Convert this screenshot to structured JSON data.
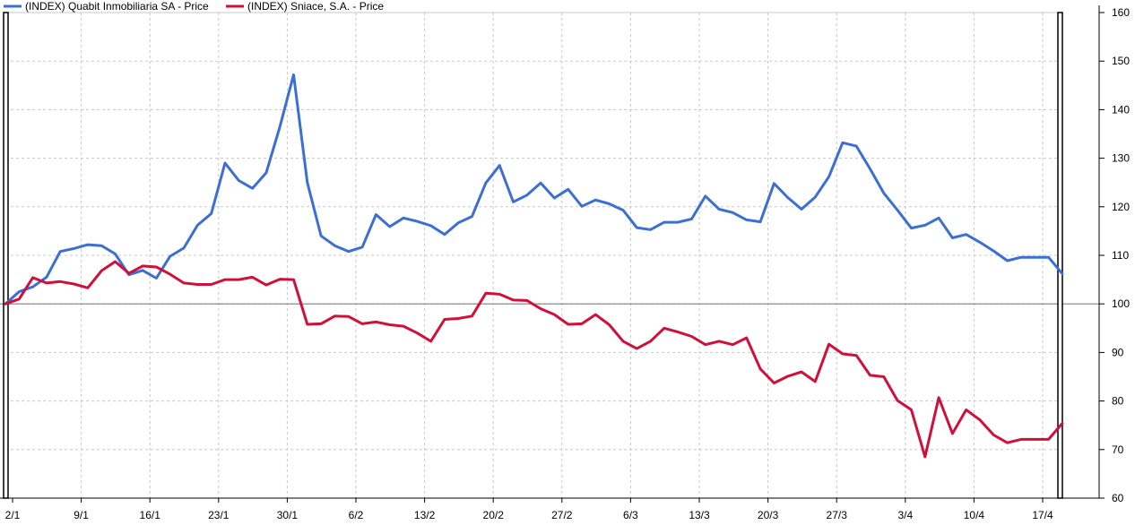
{
  "chart_data": {
    "type": "line",
    "title": "",
    "xlabel": "",
    "ylabel": "",
    "ylim": [
      60,
      160
    ],
    "yticks": [
      60,
      70,
      80,
      90,
      100,
      110,
      120,
      130,
      140,
      150,
      160
    ],
    "xtick_labels": [
      "2/1",
      "9/1",
      "16/1",
      "23/1",
      "30/1",
      "6/2",
      "13/2",
      "20/2",
      "27/2",
      "6/3",
      "13/3",
      "20/3",
      "27/3",
      "3/4",
      "10/4",
      "17/4"
    ],
    "baseline": 100,
    "grid": true,
    "legend_position": "top-left",
    "colors": {
      "series1": "#3b6fd3",
      "series2": "#d0103a",
      "grid": "#c8c8c8",
      "baseline": "#808080",
      "axis": "#000000"
    },
    "series": [
      {
        "name": "(INDEX) Quabit Inmobiliaria SA - Price",
        "values": [
          100,
          102.5,
          103.5,
          105.5,
          110.8,
          111.4,
          112.2,
          112.0,
          110.3,
          106.0,
          106.9,
          105.3,
          109.8,
          111.5,
          116.2,
          118.6,
          129.0,
          125.4,
          123.8,
          127.0,
          136.5,
          147.2,
          125.0,
          114.0,
          112.0,
          110.8,
          111.7,
          118.4,
          115.9,
          117.7,
          117.0,
          116.1,
          114.3,
          116.7,
          118.0,
          124.9,
          128.5,
          121.0,
          122.4,
          124.9,
          121.8,
          123.6,
          120.1,
          121.4,
          120.6,
          119.3,
          115.7,
          115.3,
          116.8,
          116.8,
          117.5,
          122.2,
          119.5,
          118.8,
          117.3,
          116.9,
          124.8,
          121.9,
          119.5,
          122.0,
          126.2,
          133.2,
          132.5,
          127.8,
          122.8,
          119.3,
          115.6,
          116.2,
          117.7,
          113.6,
          114.3,
          112.7,
          110.9,
          108.9,
          109.6,
          109.6,
          109.6,
          106.2
        ]
      },
      {
        "name": "(INDEX) Sniace, S.A. - Price",
        "values": [
          100,
          101.0,
          105.4,
          104.3,
          104.6,
          104.1,
          103.3,
          106.8,
          108.7,
          106.3,
          107.8,
          107.6,
          106.1,
          104.3,
          104.0,
          104.0,
          105.0,
          105.0,
          105.5,
          103.9,
          105.1,
          105.0,
          95.8,
          95.9,
          97.5,
          97.4,
          95.9,
          96.3,
          95.7,
          95.4,
          94.0,
          92.3,
          96.8,
          97.0,
          97.5,
          102.2,
          102.0,
          100.8,
          100.7,
          99.0,
          97.8,
          95.8,
          95.9,
          97.8,
          95.7,
          92.3,
          90.8,
          92.3,
          95.0,
          94.2,
          93.3,
          91.6,
          92.3,
          91.6,
          93.0,
          86.6,
          83.7,
          85.1,
          86.0,
          84.0,
          91.7,
          89.7,
          89.4,
          85.3,
          85.0,
          80.1,
          78.2,
          68.5,
          80.7,
          73.3,
          78.2,
          76.1,
          73.0,
          71.4,
          72.1,
          72.1,
          72.1,
          75.4
        ]
      }
    ]
  }
}
